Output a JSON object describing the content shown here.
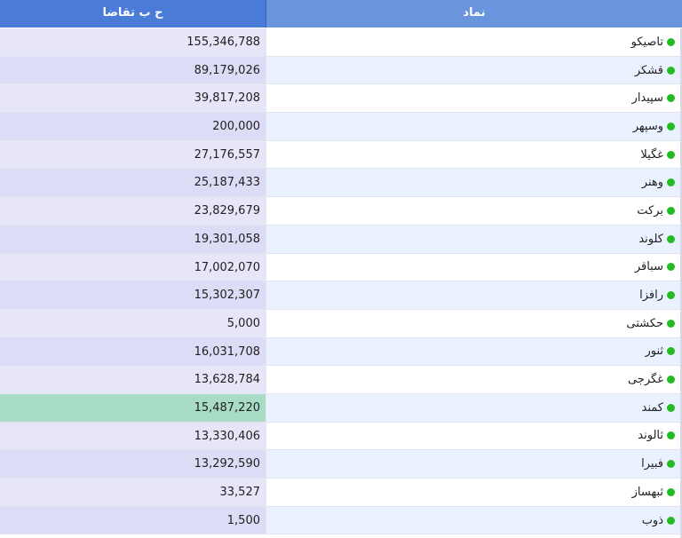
{
  "columns": {
    "demand": "ح ب تقاضا",
    "symbol": "نماد"
  },
  "status_color": "#22bb22",
  "highlight_color": "#a8dcc6",
  "rows": [
    {
      "symbol": "تاصیکو",
      "demand": "155,346,788",
      "status": "green-dot-icon"
    },
    {
      "symbol": "قشکر",
      "demand": "89,179,026",
      "status": "green-dot-icon"
    },
    {
      "symbol": "سپیدار",
      "demand": "39,817,208",
      "status": "green-dot-icon"
    },
    {
      "symbol": "وسپهر",
      "demand": "200,000",
      "status": "green-dot-icon"
    },
    {
      "symbol": "غگیلا",
      "demand": "27,176,557",
      "status": "green-dot-icon"
    },
    {
      "symbol": "وهنر",
      "demand": "25,187,433",
      "status": "green-dot-icon"
    },
    {
      "symbol": "برکت",
      "demand": "23,829,679",
      "status": "green-dot-icon"
    },
    {
      "symbol": "کلوند",
      "demand": "19,301,058",
      "status": "green-dot-icon"
    },
    {
      "symbol": "سباقر",
      "demand": "17,002,070",
      "status": "green-dot-icon"
    },
    {
      "symbol": "رافزا",
      "demand": "15,302,307",
      "status": "green-dot-icon"
    },
    {
      "symbol": "حکشتی",
      "demand": "5,000",
      "status": "green-dot-icon"
    },
    {
      "symbol": "ثنور",
      "demand": "16,031,708",
      "status": "green-dot-icon"
    },
    {
      "symbol": "غگرجی",
      "demand": "13,628,784",
      "status": "green-dot-icon"
    },
    {
      "symbol": "کمند",
      "demand": "15,487,220",
      "status": "green-dot-icon",
      "highlighted": true
    },
    {
      "symbol": "ثالوند",
      "demand": "13,330,406",
      "status": "green-dot-icon"
    },
    {
      "symbol": "فبیرا",
      "demand": "13,292,590",
      "status": "green-dot-icon"
    },
    {
      "symbol": "ثبهساز",
      "demand": "33,527",
      "status": "green-dot-icon"
    },
    {
      "symbol": "ذوب",
      "demand": "1,500",
      "status": "green-dot-icon"
    }
  ]
}
